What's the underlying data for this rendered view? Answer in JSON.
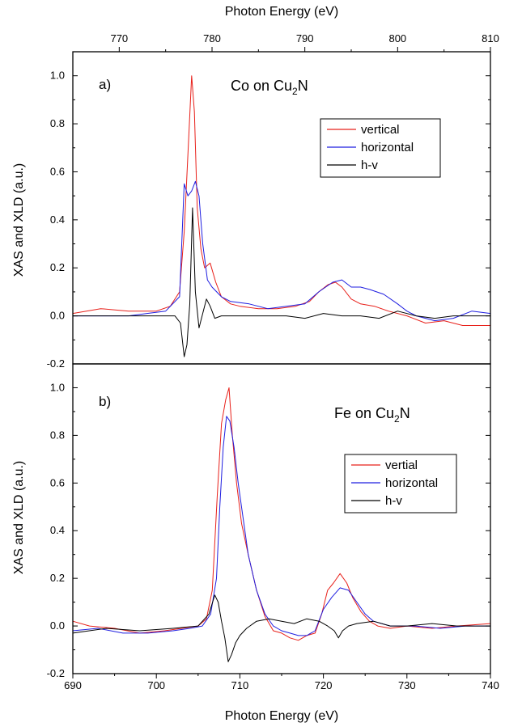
{
  "axes": {
    "top_xlabel": "Photon Energy (eV)",
    "bottom_xlabel": "Photon Energy (eV)",
    "ylabel": "XAS and XLD (a.u.)"
  },
  "chart_data": [
    {
      "type": "line",
      "panel_label": "a)",
      "title_main": "Co on Cu",
      "title_sub": "2",
      "title_end": "N",
      "xlabel": "Photon Energy (eV)",
      "ylabel": "XAS and XLD (a.u.)",
      "xlim": [
        765,
        810
      ],
      "ylim": [
        -0.2,
        1.1
      ],
      "xticks": [
        770,
        780,
        790,
        800,
        810
      ],
      "yticks": [
        -0.2,
        0.0,
        0.2,
        0.4,
        0.6,
        0.8,
        1.0
      ],
      "ytick_labels": [
        "-0.2",
        "0.0",
        "0.2",
        "0.4",
        "0.6",
        "0.8",
        "1.0"
      ],
      "legend_position": "upper-right",
      "grid": false,
      "series": [
        {
          "name": "vertical",
          "color": "#e8201a",
          "x": [
            765,
            768,
            771,
            774,
            775.5,
            776.5,
            777,
            777.5,
            777.8,
            778.1,
            778.4,
            778.8,
            779.2,
            779.8,
            780.4,
            781,
            782,
            783,
            785,
            787,
            789,
            790.5,
            791.5,
            792.5,
            793.3,
            794,
            795,
            796,
            797.5,
            799,
            801,
            803,
            805,
            807,
            810
          ],
          "y": [
            0.01,
            0.03,
            0.02,
            0.02,
            0.04,
            0.1,
            0.35,
            0.75,
            1.0,
            0.85,
            0.45,
            0.28,
            0.2,
            0.22,
            0.14,
            0.08,
            0.05,
            0.04,
            0.03,
            0.03,
            0.04,
            0.06,
            0.1,
            0.13,
            0.14,
            0.12,
            0.07,
            0.05,
            0.04,
            0.02,
            0.0,
            -0.03,
            -0.02,
            -0.04,
            -0.04
          ]
        },
        {
          "name": "horizontal",
          "color": "#1f1ee0",
          "x": [
            765,
            768,
            771,
            773,
            775,
            776.5,
            777,
            777.4,
            777.8,
            778.2,
            778.6,
            779,
            779.5,
            780,
            781,
            782,
            784,
            786,
            788,
            790,
            791.5,
            793,
            794,
            795,
            796,
            797,
            798.5,
            800,
            801,
            802,
            804,
            806,
            808,
            810
          ],
          "y": [
            0.0,
            0.0,
            0.0,
            0.01,
            0.02,
            0.08,
            0.55,
            0.5,
            0.52,
            0.56,
            0.5,
            0.3,
            0.15,
            0.12,
            0.08,
            0.06,
            0.05,
            0.03,
            0.04,
            0.05,
            0.1,
            0.14,
            0.15,
            0.12,
            0.12,
            0.11,
            0.09,
            0.05,
            0.02,
            0.0,
            -0.02,
            -0.01,
            0.02,
            0.01
          ]
        },
        {
          "name": "h-v",
          "color": "#000000",
          "x": [
            765,
            770,
            774,
            776,
            776.6,
            777,
            777.3,
            777.6,
            777.9,
            778.2,
            778.6,
            779,
            779.4,
            779.8,
            780.3,
            781,
            782,
            784,
            786,
            788,
            790,
            792,
            794,
            796,
            798,
            800,
            802,
            804,
            806,
            808,
            810
          ],
          "y": [
            0.0,
            0.0,
            0.0,
            0.0,
            -0.03,
            -0.17,
            -0.12,
            0.05,
            0.45,
            0.1,
            -0.05,
            0.01,
            0.07,
            0.04,
            -0.01,
            0.0,
            0.0,
            0.0,
            0.0,
            0.0,
            -0.01,
            0.01,
            0.0,
            0.0,
            -0.01,
            0.02,
            0.0,
            -0.01,
            0.0,
            0.0,
            0.0
          ]
        }
      ]
    },
    {
      "type": "line",
      "panel_label": "b)",
      "title_main": "Fe on Cu",
      "title_sub": "2",
      "title_end": "N",
      "xlabel": "Photon Energy (eV)",
      "ylabel": "XAS and XLD (a.u.)",
      "xlim": [
        690,
        740
      ],
      "ylim": [
        -0.2,
        1.1
      ],
      "xticks": [
        690,
        700,
        710,
        720,
        730,
        740
      ],
      "yticks": [
        -0.2,
        0.0,
        0.2,
        0.4,
        0.6,
        0.8,
        1.0
      ],
      "ytick_labels": [
        "-0.2",
        "0.0",
        "0.2",
        "0.4",
        "0.6",
        "0.8",
        "1.0"
      ],
      "legend_position": "right",
      "grid": false,
      "series": [
        {
          "name": "vertial",
          "color": "#e8201a",
          "x": [
            690,
            692,
            695,
            698,
            701,
            703,
            705,
            706,
            706.7,
            707.3,
            707.8,
            708.3,
            708.7,
            709.1,
            709.6,
            710.2,
            711,
            712,
            713,
            714,
            715,
            716,
            717,
            718,
            719,
            719.8,
            720.5,
            721.2,
            722,
            722.8,
            723.5,
            724.5,
            725.5,
            726.5,
            728,
            730,
            733,
            736,
            740
          ],
          "y": [
            0.02,
            0.0,
            -0.01,
            -0.03,
            -0.02,
            -0.01,
            0.0,
            0.03,
            0.15,
            0.55,
            0.85,
            0.95,
            1.0,
            0.8,
            0.6,
            0.43,
            0.3,
            0.15,
            0.04,
            -0.02,
            -0.03,
            -0.05,
            -0.06,
            -0.04,
            -0.03,
            0.05,
            0.15,
            0.18,
            0.22,
            0.18,
            0.12,
            0.06,
            0.02,
            0.0,
            -0.01,
            0.0,
            -0.01,
            0.0,
            0.01
          ]
        },
        {
          "name": "horizontal",
          "color": "#1f1ee0",
          "x": [
            690,
            693,
            696,
            699,
            702,
            704,
            705.5,
            706.5,
            707.2,
            707.6,
            708,
            708.4,
            708.8,
            709.3,
            709.8,
            710.4,
            711,
            712,
            713,
            714,
            715,
            716,
            717,
            718,
            719,
            720,
            721,
            722,
            723,
            724,
            725,
            726,
            728,
            731,
            734,
            737,
            740
          ],
          "y": [
            -0.02,
            -0.01,
            -0.03,
            -0.03,
            -0.02,
            -0.01,
            0.0,
            0.05,
            0.2,
            0.5,
            0.75,
            0.88,
            0.86,
            0.75,
            0.6,
            0.45,
            0.3,
            0.15,
            0.05,
            0.0,
            -0.02,
            -0.03,
            -0.04,
            -0.04,
            -0.02,
            0.07,
            0.12,
            0.16,
            0.15,
            0.1,
            0.05,
            0.02,
            0.0,
            0.0,
            -0.01,
            0.0,
            0.0
          ]
        },
        {
          "name": "h-v",
          "color": "#000000",
          "x": [
            690,
            694,
            698,
            702,
            705,
            706.3,
            707,
            707.4,
            707.8,
            708.2,
            708.6,
            709,
            709.5,
            710,
            710.8,
            712,
            713.5,
            715,
            716.5,
            718,
            719.5,
            720.5,
            721.3,
            721.8,
            722.3,
            723,
            724,
            726,
            728,
            730,
            733,
            736,
            740
          ],
          "y": [
            -0.03,
            -0.01,
            -0.02,
            -0.01,
            0.0,
            0.05,
            0.13,
            0.1,
            0.02,
            -0.05,
            -0.15,
            -0.12,
            -0.07,
            -0.04,
            -0.01,
            0.02,
            0.03,
            0.02,
            0.01,
            0.03,
            0.02,
            0.0,
            -0.02,
            -0.05,
            -0.02,
            0.0,
            0.01,
            0.02,
            0.0,
            0.0,
            0.01,
            0.0,
            0.0
          ]
        }
      ]
    }
  ]
}
